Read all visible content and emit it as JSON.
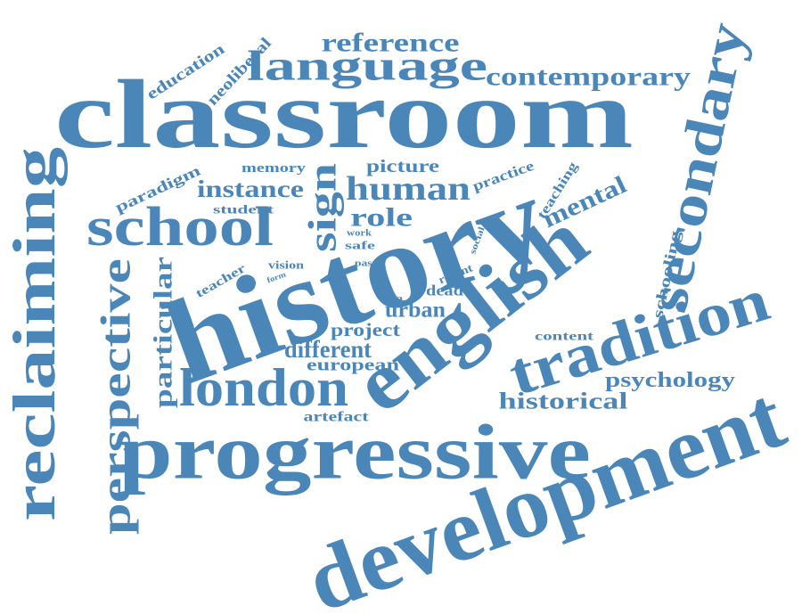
{
  "color": "#4a86b8",
  "words": [
    {
      "text": "classroom"
    },
    {
      "text": "history"
    },
    {
      "text": "progressive"
    },
    {
      "text": "development"
    },
    {
      "text": "english"
    },
    {
      "text": "tradition"
    },
    {
      "text": "reclaiming"
    },
    {
      "text": "secondary"
    },
    {
      "text": "london"
    },
    {
      "text": "school"
    },
    {
      "text": "perspective"
    },
    {
      "text": "language"
    },
    {
      "text": "sign"
    },
    {
      "text": "human"
    },
    {
      "text": "reference"
    },
    {
      "text": "contemporary"
    },
    {
      "text": "role"
    },
    {
      "text": "instance"
    },
    {
      "text": "mental"
    },
    {
      "text": "particular"
    },
    {
      "text": "different"
    },
    {
      "text": "historical"
    },
    {
      "text": "psychology"
    },
    {
      "text": "urban"
    },
    {
      "text": "project"
    },
    {
      "text": "european"
    },
    {
      "text": "picture"
    },
    {
      "text": "schooling"
    },
    {
      "text": "education"
    },
    {
      "text": "neoliberal"
    },
    {
      "text": "paradigm"
    },
    {
      "text": "practice"
    },
    {
      "text": "teaching"
    },
    {
      "text": "memory"
    },
    {
      "text": "student"
    },
    {
      "text": "teacher"
    },
    {
      "text": "vision"
    },
    {
      "text": "form"
    },
    {
      "text": "dead"
    },
    {
      "text": "recent"
    },
    {
      "text": "content"
    },
    {
      "text": "artefact"
    },
    {
      "text": "idea"
    },
    {
      "text": "work"
    },
    {
      "text": "safe"
    },
    {
      "text": "past"
    },
    {
      "text": "social"
    }
  ]
}
